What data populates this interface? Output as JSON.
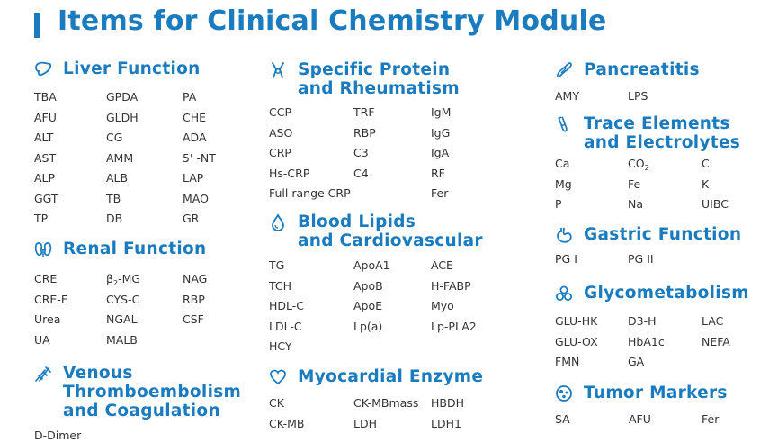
{
  "title": "Items for Clinical Chemistry Module",
  "sections": {
    "liver": {
      "title_lines": [
        "Liver Function"
      ],
      "icon": "liver-icon",
      "cols": [
        [
          "TBA",
          "AFU",
          "ALT",
          "AST",
          "ALP",
          "GGT",
          "TP"
        ],
        [
          "GPDA",
          "GLDH",
          "CG",
          "AMM",
          "ALB",
          "TB",
          "DB"
        ],
        [
          "PA",
          "CHE",
          "ADA",
          "5' -NT",
          "LAP",
          "MAO",
          "GR"
        ]
      ]
    },
    "renal": {
      "title_lines": [
        "Renal Function"
      ],
      "icon": "kidney-icon",
      "cols": [
        [
          "CRE",
          "CRE-E",
          "Urea",
          "UA"
        ],
        [
          "β2-MG",
          "CYS-C",
          "NGAL",
          "MALB"
        ],
        [
          "NAG",
          "RBP",
          "CSF"
        ]
      ]
    },
    "venous": {
      "title_lines": [
        "Venous",
        "Thromboembolism",
        "and Coagulation"
      ],
      "icon": "coagulation-icon",
      "cols": [
        [
          "D-Dimer"
        ]
      ]
    },
    "protein": {
      "title_lines": [
        "Specific Protein",
        "and Rheumatism"
      ],
      "icon": "joint-icon",
      "cols": [
        [
          "CCP",
          "ASO",
          "CRP",
          "Hs-CRP",
          "Full range CRP"
        ],
        [
          "TRF",
          "RBP",
          "C3",
          "C4"
        ],
        [
          "IgM",
          "IgG",
          "IgA",
          "RF",
          "Fer"
        ]
      ]
    },
    "lipids": {
      "title_lines": [
        "Blood Lipids",
        "and Cardiovascular"
      ],
      "icon": "blood-drop-icon",
      "cols": [
        [
          "TG",
          "TCH",
          "HDL-C",
          "LDL-C",
          "HCY"
        ],
        [
          "ApoA1",
          "ApoB",
          "ApoE",
          "Lp(a)"
        ],
        [
          "ACE",
          "H-FABP",
          "Myo",
          "Lp-PLA2"
        ]
      ]
    },
    "myocardial": {
      "title_lines": [
        "Myocardial Enzyme"
      ],
      "icon": "heart-icon",
      "cols": [
        [
          "CK",
          "CK-MB"
        ],
        [
          "CK-MBmass",
          "LDH"
        ],
        [
          "HBDH",
          "LDH1"
        ]
      ]
    },
    "pancreatitis": {
      "title_lines": [
        "Pancreatitis"
      ],
      "icon": "pancreas-icon",
      "cols": [
        [
          "AMY"
        ],
        [
          "LPS"
        ]
      ]
    },
    "trace": {
      "title_lines": [
        "Trace Elements",
        "and Electrolytes"
      ],
      "icon": "test-tube-icon",
      "cols": [
        [
          "Ca",
          "Mg",
          "P"
        ],
        [
          "CO2",
          "Fe",
          "Na"
        ],
        [
          "Cl",
          "K",
          "UIBC"
        ]
      ]
    },
    "gastric": {
      "title_lines": [
        "Gastric Function"
      ],
      "icon": "stomach-icon",
      "cols": [
        [
          "PG I"
        ],
        [
          "PG II"
        ]
      ]
    },
    "glyco": {
      "title_lines": [
        "Glycometabolism"
      ],
      "icon": "molecule-icon",
      "cols": [
        [
          "GLU-HK",
          "GLU-OX",
          "FMN"
        ],
        [
          "D3-H",
          "HbA1c",
          "GA"
        ],
        [
          "LAC",
          "NEFA"
        ]
      ]
    },
    "tumor": {
      "title_lines": [
        "Tumor Markers"
      ],
      "icon": "cell-icon",
      "cols": [
        [
          "SA"
        ],
        [
          "AFU"
        ],
        [
          "Fer"
        ]
      ]
    }
  },
  "colors": {
    "accent": "#1a7bbf",
    "text": "#333333"
  }
}
